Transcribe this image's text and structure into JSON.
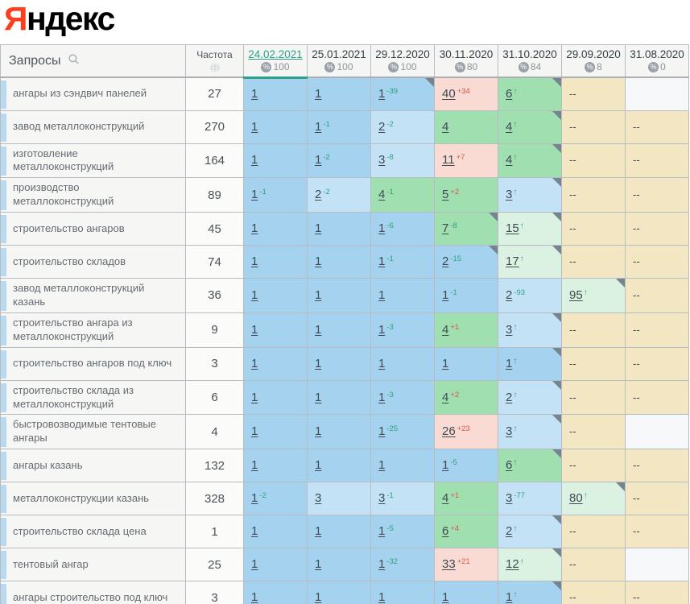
{
  "logo": {
    "ya": "Я",
    "rest": "ндекс"
  },
  "icons": {
    "search": "magnifier",
    "globe": "globe",
    "percent": "%",
    "up_arrow": "↑",
    "corner": "note-corner"
  },
  "palette": {
    "cell-blue": "#a5d2ee",
    "cell-lightblue": "#c3e2f6",
    "cell-green": "#a0dfb0",
    "cell-mint": "#dbf2e2",
    "cell-pink": "#f9dbd4",
    "cell-tan": "#f3e6c3",
    "cell-empty": "#f7f8f9",
    "change-up": "#2aa57f",
    "change-down": "#e0544a",
    "link": "#3f4a53",
    "selected-date": "#2aa188",
    "logo-red": "#fc3f1d",
    "border": "#b6bcc2",
    "corner": "#76848f",
    "strip": "#b9d9f0"
  },
  "table": {
    "queries_header": "Запросы",
    "frequency_header": "Частота",
    "dates": [
      {
        "label": "24.02.2021",
        "visibility": "100",
        "selected": true
      },
      {
        "label": "25.01.2021",
        "visibility": "100",
        "selected": false
      },
      {
        "label": "29.12.2020",
        "visibility": "100",
        "selected": false
      },
      {
        "label": "30.11.2020",
        "visibility": "80",
        "selected": false
      },
      {
        "label": "31.10.2020",
        "visibility": "84",
        "selected": false
      },
      {
        "label": "29.09.2020",
        "visibility": "8",
        "selected": false
      },
      {
        "label": "31.08.2020",
        "visibility": "0",
        "selected": false
      }
    ],
    "rows": [
      {
        "keyword": "ангары из сэндвич панелей",
        "frequency": "27",
        "cells": [
          {
            "pos": "1",
            "bg": "blue"
          },
          {
            "pos": "1",
            "bg": "blue"
          },
          {
            "pos": "1",
            "chg": "-39",
            "dir": "up",
            "bg": "blue",
            "corner": true
          },
          {
            "pos": "40",
            "chg": "+34",
            "dir": "down",
            "bg": "pink"
          },
          {
            "pos": "6",
            "arrow": true,
            "bg": "green",
            "corner": true
          },
          {
            "pos": "--",
            "bg": "tan"
          },
          {
            "pos": "",
            "bg": "empty"
          }
        ]
      },
      {
        "keyword": "завод металлоконструкций",
        "frequency": "270",
        "cells": [
          {
            "pos": "1",
            "bg": "blue"
          },
          {
            "pos": "1",
            "chg": "-1",
            "dir": "up",
            "bg": "blue"
          },
          {
            "pos": "2",
            "chg": "-2",
            "dir": "up",
            "bg": "lightblue"
          },
          {
            "pos": "4",
            "bg": "green"
          },
          {
            "pos": "4",
            "arrow": true,
            "bg": "green",
            "corner": true
          },
          {
            "pos": "--",
            "bg": "tan"
          },
          {
            "pos": "--",
            "bg": "tan"
          }
        ]
      },
      {
        "keyword": "изготовление металлоконструкций",
        "frequency": "164",
        "cells": [
          {
            "pos": "1",
            "bg": "blue"
          },
          {
            "pos": "1",
            "chg": "-2",
            "dir": "up",
            "bg": "blue"
          },
          {
            "pos": "3",
            "chg": "-8",
            "dir": "up",
            "bg": "lightblue"
          },
          {
            "pos": "11",
            "chg": "+7",
            "dir": "down",
            "bg": "pink"
          },
          {
            "pos": "4",
            "arrow": true,
            "bg": "green",
            "corner": true
          },
          {
            "pos": "--",
            "bg": "tan"
          },
          {
            "pos": "--",
            "bg": "tan"
          }
        ]
      },
      {
        "keyword": "производство металлоконструкций",
        "frequency": "89",
        "cells": [
          {
            "pos": "1",
            "chg": "-1",
            "dir": "up",
            "bg": "blue"
          },
          {
            "pos": "2",
            "chg": "-2",
            "dir": "up",
            "bg": "lightblue"
          },
          {
            "pos": "4",
            "chg": "-1",
            "dir": "up",
            "bg": "green"
          },
          {
            "pos": "5",
            "chg": "+2",
            "dir": "down",
            "bg": "green"
          },
          {
            "pos": "3",
            "arrow": true,
            "bg": "lightblue",
            "corner": true
          },
          {
            "pos": "--",
            "bg": "tan"
          },
          {
            "pos": "--",
            "bg": "tan"
          }
        ]
      },
      {
        "keyword": "строительство ангаров",
        "frequency": "45",
        "cells": [
          {
            "pos": "1",
            "bg": "blue"
          },
          {
            "pos": "1",
            "bg": "blue"
          },
          {
            "pos": "1",
            "chg": "-6",
            "dir": "up",
            "bg": "blue"
          },
          {
            "pos": "7",
            "chg": "-8",
            "dir": "up",
            "bg": "green",
            "corner": true
          },
          {
            "pos": "15",
            "arrow": true,
            "bg": "mint",
            "corner": true
          },
          {
            "pos": "--",
            "bg": "tan"
          },
          {
            "pos": "--",
            "bg": "tan"
          }
        ]
      },
      {
        "keyword": "строительство складов",
        "frequency": "74",
        "cells": [
          {
            "pos": "1",
            "bg": "blue"
          },
          {
            "pos": "1",
            "bg": "blue"
          },
          {
            "pos": "1",
            "chg": "-1",
            "dir": "up",
            "bg": "blue"
          },
          {
            "pos": "2",
            "chg": "-15",
            "dir": "up",
            "bg": "blue",
            "corner": true
          },
          {
            "pos": "17",
            "arrow": true,
            "bg": "mint",
            "corner": true
          },
          {
            "pos": "--",
            "bg": "tan"
          },
          {
            "pos": "--",
            "bg": "tan"
          }
        ]
      },
      {
        "keyword": "завод металлоконструкций казань",
        "frequency": "36",
        "cells": [
          {
            "pos": "1",
            "bg": "blue"
          },
          {
            "pos": "1",
            "bg": "blue"
          },
          {
            "pos": "1",
            "bg": "blue"
          },
          {
            "pos": "1",
            "chg": "-1",
            "dir": "up",
            "bg": "blue"
          },
          {
            "pos": "2",
            "chg": "-93",
            "dir": "up",
            "bg": "lightblue"
          },
          {
            "pos": "95",
            "arrow": true,
            "bg": "mint",
            "corner": true
          },
          {
            "pos": "--",
            "bg": "tan"
          }
        ]
      },
      {
        "keyword": "строительство ангара из металлоконструкций",
        "frequency": "9",
        "cells": [
          {
            "pos": "1",
            "bg": "blue"
          },
          {
            "pos": "1",
            "bg": "blue"
          },
          {
            "pos": "1",
            "chg": "-3",
            "dir": "up",
            "bg": "blue"
          },
          {
            "pos": "4",
            "chg": "+1",
            "dir": "down",
            "bg": "green"
          },
          {
            "pos": "3",
            "arrow": true,
            "bg": "lightblue",
            "corner": true
          },
          {
            "pos": "--",
            "bg": "tan"
          },
          {
            "pos": "--",
            "bg": "tan"
          }
        ]
      },
      {
        "keyword": "строительство ангаров под ключ",
        "frequency": "3",
        "cells": [
          {
            "pos": "1",
            "bg": "blue"
          },
          {
            "pos": "1",
            "bg": "blue"
          },
          {
            "pos": "1",
            "bg": "blue"
          },
          {
            "pos": "1",
            "bg": "blue"
          },
          {
            "pos": "1",
            "arrow": true,
            "bg": "blue",
            "corner": true
          },
          {
            "pos": "--",
            "bg": "tan"
          },
          {
            "pos": "--",
            "bg": "tan"
          }
        ]
      },
      {
        "keyword": "строительство склада из металлоконструкций",
        "frequency": "6",
        "cells": [
          {
            "pos": "1",
            "bg": "blue"
          },
          {
            "pos": "1",
            "bg": "blue"
          },
          {
            "pos": "1",
            "chg": "-3",
            "dir": "up",
            "bg": "blue"
          },
          {
            "pos": "4",
            "chg": "+2",
            "dir": "down",
            "bg": "green"
          },
          {
            "pos": "2",
            "arrow": true,
            "bg": "lightblue",
            "corner": true
          },
          {
            "pos": "--",
            "bg": "tan"
          },
          {
            "pos": "--",
            "bg": "tan"
          }
        ]
      },
      {
        "keyword": "быстровозводимые тентовые ангары",
        "frequency": "4",
        "cells": [
          {
            "pos": "1",
            "bg": "blue"
          },
          {
            "pos": "1",
            "bg": "blue"
          },
          {
            "pos": "1",
            "chg": "-25",
            "dir": "up",
            "bg": "blue"
          },
          {
            "pos": "26",
            "chg": "+23",
            "dir": "down",
            "bg": "pink"
          },
          {
            "pos": "3",
            "arrow": true,
            "bg": "lightblue",
            "corner": true
          },
          {
            "pos": "--",
            "bg": "tan"
          },
          {
            "pos": "",
            "bg": "empty"
          }
        ]
      },
      {
        "keyword": "ангары казань",
        "frequency": "132",
        "cells": [
          {
            "pos": "1",
            "bg": "blue"
          },
          {
            "pos": "1",
            "bg": "blue"
          },
          {
            "pos": "1",
            "bg": "blue"
          },
          {
            "pos": "1",
            "chg": "-5",
            "dir": "up",
            "bg": "blue"
          },
          {
            "pos": "6",
            "arrow": true,
            "bg": "green",
            "corner": true
          },
          {
            "pos": "--",
            "bg": "tan"
          },
          {
            "pos": "--",
            "bg": "tan"
          }
        ]
      },
      {
        "keyword": "металлоконструкции казань",
        "frequency": "328",
        "cells": [
          {
            "pos": "1",
            "chg": "-2",
            "dir": "up",
            "bg": "blue"
          },
          {
            "pos": "3",
            "bg": "lightblue"
          },
          {
            "pos": "3",
            "chg": "-1",
            "dir": "up",
            "bg": "lightblue"
          },
          {
            "pos": "4",
            "chg": "+1",
            "dir": "down",
            "bg": "green"
          },
          {
            "pos": "3",
            "chg": "-77",
            "dir": "up",
            "bg": "lightblue"
          },
          {
            "pos": "80",
            "arrow": true,
            "bg": "mint",
            "corner": true
          },
          {
            "pos": "--",
            "bg": "tan"
          }
        ]
      },
      {
        "keyword": "строительство склада цена",
        "frequency": "1",
        "cells": [
          {
            "pos": "1",
            "bg": "blue"
          },
          {
            "pos": "1",
            "bg": "blue"
          },
          {
            "pos": "1",
            "chg": "-5",
            "dir": "up",
            "bg": "blue"
          },
          {
            "pos": "6",
            "chg": "+4",
            "dir": "down",
            "bg": "green"
          },
          {
            "pos": "2",
            "arrow": true,
            "bg": "lightblue",
            "corner": true
          },
          {
            "pos": "--",
            "bg": "tan"
          },
          {
            "pos": "--",
            "bg": "tan"
          }
        ]
      },
      {
        "keyword": "тентовый ангар",
        "frequency": "25",
        "cells": [
          {
            "pos": "1",
            "bg": "blue"
          },
          {
            "pos": "1",
            "bg": "blue"
          },
          {
            "pos": "1",
            "chg": "-32",
            "dir": "up",
            "bg": "blue"
          },
          {
            "pos": "33",
            "chg": "+21",
            "dir": "down",
            "bg": "pink"
          },
          {
            "pos": "12",
            "arrow": true,
            "bg": "mint",
            "corner": true
          },
          {
            "pos": "--",
            "bg": "tan"
          },
          {
            "pos": "",
            "bg": "empty"
          }
        ]
      },
      {
        "keyword": "ангары строительство под ключ",
        "frequency": "3",
        "cells": [
          {
            "pos": "1",
            "bg": "blue"
          },
          {
            "pos": "1",
            "bg": "blue"
          },
          {
            "pos": "1",
            "bg": "blue"
          },
          {
            "pos": "1",
            "bg": "blue"
          },
          {
            "pos": "1",
            "arrow": true,
            "bg": "blue",
            "corner": true
          },
          {
            "pos": "--",
            "bg": "tan"
          },
          {
            "pos": "--",
            "bg": "tan"
          }
        ]
      }
    ]
  }
}
